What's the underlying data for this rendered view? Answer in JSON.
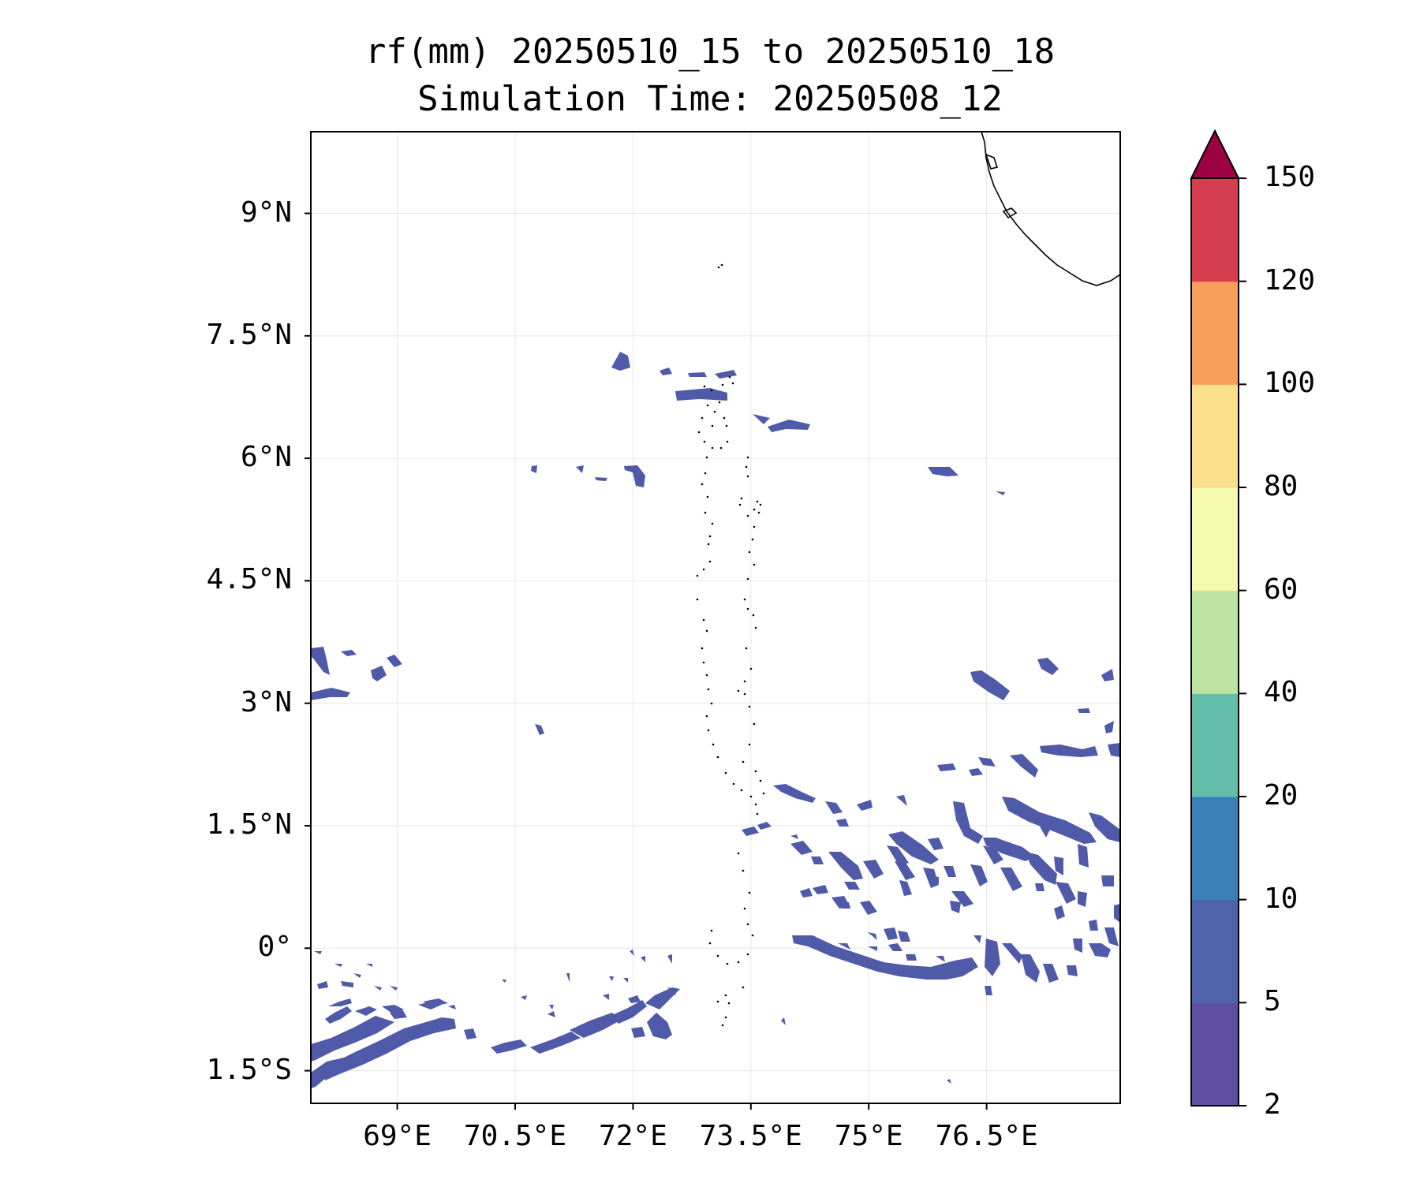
{
  "title": {
    "line1": "rf(mm) 20250510_15 to 20250510_18",
    "line2": "Simulation Time: 20250508_12"
  },
  "map": {
    "lon_range": [
      67.9,
      78.2
    ],
    "lat_range": [
      -1.9,
      10.0
    ],
    "lon_ticks": [
      {
        "value": 69.0,
        "label": "69°E"
      },
      {
        "value": 70.5,
        "label": "70.5°E"
      },
      {
        "value": 72.0,
        "label": "72°E"
      },
      {
        "value": 73.5,
        "label": "73.5°E"
      },
      {
        "value": 75.0,
        "label": "75°E"
      },
      {
        "value": 76.5,
        "label": "76.5°E"
      }
    ],
    "lat_ticks": [
      {
        "value": 9.0,
        "label": "9°N"
      },
      {
        "value": 7.5,
        "label": "7.5°N"
      },
      {
        "value": 6.0,
        "label": "6°N"
      },
      {
        "value": 4.5,
        "label": "4.5°N"
      },
      {
        "value": 3.0,
        "label": "3°N"
      },
      {
        "value": 1.5,
        "label": "1.5°N"
      },
      {
        "value": 0.0,
        "label": "0°"
      },
      {
        "value": -1.5,
        "label": "1.5°S"
      }
    ],
    "grid": true,
    "rain_color": "#4f5aa8",
    "coast_color": "#000000"
  },
  "colorbar": {
    "levels": [
      "2",
      "5",
      "10",
      "20",
      "40",
      "60",
      "80",
      "100",
      "120",
      "150"
    ],
    "colors": [
      "#5e4fa2",
      "#4f63ad",
      "#3a80b9",
      "#63bfaa",
      "#bde3a0",
      "#f4f9ad",
      "#fbdf8b",
      "#f89d5a",
      "#d53e4f"
    ],
    "extend_color": "#9e0142",
    "extend": "max"
  }
}
